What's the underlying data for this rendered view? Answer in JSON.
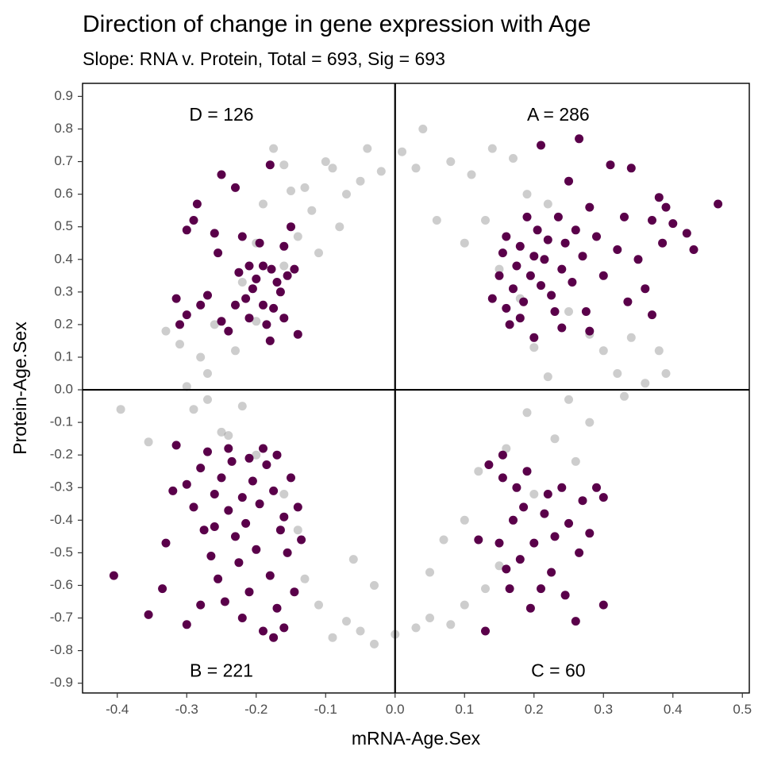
{
  "chart_data": {
    "type": "scatter",
    "title": "Direction of change in gene expression with Age",
    "subtitle": "Slope: RNA v. Protein, Total = 693, Sig = 693",
    "xlabel": "mRNA-Age.Sex",
    "ylabel": "Protein-Age.Sex",
    "xlim": [
      -0.45,
      0.51
    ],
    "ylim": [
      -0.93,
      0.94
    ],
    "x_ticks": [
      -0.4,
      -0.3,
      -0.2,
      -0.1,
      0.0,
      0.1,
      0.2,
      0.3,
      0.4,
      0.5
    ],
    "x_tick_labels": [
      "-0.4",
      "-0.3",
      "-0.2",
      "-0.1",
      "0.0",
      "0.1",
      "0.2",
      "0.3",
      "0.4",
      "0.5"
    ],
    "y_ticks": [
      0.9,
      0.8,
      0.7,
      0.6,
      0.5,
      0.4,
      0.3,
      0.2,
      0.1,
      0.0,
      -0.1,
      -0.2,
      -0.3,
      -0.4,
      -0.5,
      -0.6,
      -0.7,
      -0.8,
      -0.9
    ],
    "y_tick_labels": [
      "0.9",
      "0.8",
      "0.7",
      "0.6",
      "0.5",
      "0.4",
      "0.3",
      "0.2",
      "0.1",
      "0.0",
      "-0.1",
      "-0.2",
      "-0.3",
      "-0.4",
      "-0.5",
      "-0.6",
      "-0.7",
      "-0.8",
      "-0.9"
    ],
    "grid": false,
    "reference_lines": {
      "x": 0,
      "y": 0
    },
    "colors": {
      "background_points": "#595959",
      "significant_points": "#5a004a",
      "axis_lines": "#000000"
    },
    "quadrant_labels": [
      {
        "name": "D",
        "count": 126,
        "text": "D =  126",
        "x": -0.25,
        "y": 0.84
      },
      {
        "name": "A",
        "count": 286,
        "text": "A =  286",
        "x": 0.235,
        "y": 0.84
      },
      {
        "name": "B",
        "count": 221,
        "text": "B =  221",
        "x": -0.25,
        "y": -0.865
      },
      {
        "name": "C",
        "count": 60,
        "text": "C =  60",
        "x": 0.235,
        "y": -0.865
      }
    ],
    "series": [
      {
        "style": "background",
        "points": [
          [
            -0.395,
            -0.06
          ],
          [
            -0.355,
            -0.16
          ],
          [
            -0.33,
            0.18
          ],
          [
            -0.31,
            0.14
          ],
          [
            -0.29,
            -0.06
          ],
          [
            -0.28,
            0.1
          ],
          [
            -0.27,
            0.05
          ],
          [
            -0.25,
            -0.13
          ],
          [
            -0.23,
            0.12
          ],
          [
            -0.22,
            -0.05
          ],
          [
            -0.2,
            0.21
          ],
          [
            -0.19,
            0.57
          ],
          [
            -0.175,
            0.74
          ],
          [
            -0.16,
            0.69
          ],
          [
            -0.15,
            0.61
          ],
          [
            -0.13,
            0.62
          ],
          [
            -0.12,
            0.55
          ],
          [
            -0.1,
            0.7
          ],
          [
            -0.09,
            0.68
          ],
          [
            -0.07,
            0.6
          ],
          [
            -0.05,
            0.64
          ],
          [
            -0.04,
            0.74
          ],
          [
            -0.02,
            0.67
          ],
          [
            0.01,
            0.73
          ],
          [
            0.03,
            0.68
          ],
          [
            0.04,
            0.8
          ],
          [
            0.08,
            0.7
          ],
          [
            0.11,
            0.66
          ],
          [
            0.14,
            0.74
          ],
          [
            0.17,
            0.71
          ],
          [
            0.19,
            0.6
          ],
          [
            0.22,
            0.57
          ],
          [
            0.25,
            0.24
          ],
          [
            0.28,
            0.17
          ],
          [
            0.3,
            0.12
          ],
          [
            0.32,
            0.05
          ],
          [
            0.34,
            0.16
          ],
          [
            0.36,
            0.02
          ],
          [
            0.38,
            0.12
          ],
          [
            0.39,
            0.05
          ],
          [
            0.33,
            -0.02
          ],
          [
            0.28,
            -0.1
          ],
          [
            0.26,
            -0.22
          ],
          [
            0.23,
            -0.15
          ],
          [
            0.2,
            -0.32
          ],
          [
            0.17,
            -0.4
          ],
          [
            0.15,
            -0.54
          ],
          [
            0.13,
            -0.61
          ],
          [
            0.1,
            -0.66
          ],
          [
            0.08,
            -0.72
          ],
          [
            0.05,
            -0.7
          ],
          [
            0.03,
            -0.73
          ],
          [
            0.0,
            -0.75
          ],
          [
            -0.03,
            -0.78
          ],
          [
            -0.05,
            -0.74
          ],
          [
            -0.07,
            -0.71
          ],
          [
            -0.09,
            -0.76
          ],
          [
            -0.11,
            -0.66
          ],
          [
            -0.13,
            -0.58
          ],
          [
            -0.14,
            -0.43
          ],
          [
            -0.16,
            -0.32
          ],
          [
            -0.2,
            -0.2
          ],
          [
            -0.24,
            -0.14
          ],
          [
            -0.27,
            -0.03
          ],
          [
            -0.3,
            0.01
          ],
          [
            -0.26,
            0.2
          ],
          [
            -0.22,
            0.33
          ],
          [
            -0.2,
            0.45
          ],
          [
            -0.16,
            0.38
          ],
          [
            -0.14,
            0.47
          ],
          [
            -0.11,
            0.42
          ],
          [
            -0.08,
            0.5
          ],
          [
            0.06,
            0.52
          ],
          [
            0.1,
            0.45
          ],
          [
            0.13,
            0.52
          ],
          [
            0.15,
            0.37
          ],
          [
            0.18,
            0.28
          ],
          [
            0.2,
            0.13
          ],
          [
            0.22,
            0.04
          ],
          [
            0.25,
            -0.03
          ],
          [
            0.19,
            -0.07
          ],
          [
            0.16,
            -0.18
          ],
          [
            0.12,
            -0.25
          ],
          [
            0.1,
            -0.4
          ],
          [
            0.07,
            -0.46
          ],
          [
            0.05,
            -0.56
          ],
          [
            -0.03,
            -0.6
          ],
          [
            -0.06,
            -0.52
          ]
        ]
      },
      {
        "style": "significant",
        "points": [
          [
            -0.285,
            0.57
          ],
          [
            -0.29,
            0.52
          ],
          [
            -0.3,
            0.49
          ],
          [
            -0.26,
            0.48
          ],
          [
            -0.255,
            0.42
          ],
          [
            -0.25,
            0.66
          ],
          [
            -0.23,
            0.62
          ],
          [
            -0.315,
            0.28
          ],
          [
            -0.31,
            0.2
          ],
          [
            -0.3,
            0.23
          ],
          [
            -0.28,
            0.26
          ],
          [
            -0.27,
            0.29
          ],
          [
            -0.25,
            0.21
          ],
          [
            -0.24,
            0.18
          ],
          [
            -0.23,
            0.26
          ],
          [
            -0.225,
            0.36
          ],
          [
            -0.215,
            0.28
          ],
          [
            -0.21,
            0.38
          ],
          [
            -0.205,
            0.31
          ],
          [
            -0.2,
            0.34
          ],
          [
            -0.19,
            0.26
          ],
          [
            -0.185,
            0.2
          ],
          [
            -0.18,
            0.69
          ],
          [
            -0.178,
            0.37
          ],
          [
            -0.17,
            0.33
          ],
          [
            -0.165,
            0.3
          ],
          [
            -0.16,
            0.44
          ],
          [
            -0.155,
            0.35
          ],
          [
            -0.15,
            0.5
          ],
          [
            -0.145,
            0.37
          ],
          [
            -0.14,
            0.17
          ],
          [
            -0.175,
            0.25
          ],
          [
            -0.195,
            0.45
          ],
          [
            -0.22,
            0.47
          ],
          [
            -0.21,
            0.22
          ],
          [
            -0.18,
            0.15
          ],
          [
            -0.16,
            0.22
          ],
          [
            -0.19,
            0.38
          ],
          [
            0.14,
            0.28
          ],
          [
            0.15,
            0.35
          ],
          [
            0.155,
            0.42
          ],
          [
            0.16,
            0.47
          ],
          [
            0.165,
            0.2
          ],
          [
            0.17,
            0.31
          ],
          [
            0.175,
            0.38
          ],
          [
            0.18,
            0.44
          ],
          [
            0.185,
            0.27
          ],
          [
            0.19,
            0.53
          ],
          [
            0.195,
            0.35
          ],
          [
            0.2,
            0.41
          ],
          [
            0.205,
            0.49
          ],
          [
            0.21,
            0.32
          ],
          [
            0.21,
            0.75
          ],
          [
            0.215,
            0.4
          ],
          [
            0.22,
            0.46
          ],
          [
            0.225,
            0.29
          ],
          [
            0.23,
            0.24
          ],
          [
            0.235,
            0.53
          ],
          [
            0.24,
            0.37
          ],
          [
            0.245,
            0.45
          ],
          [
            0.25,
            0.64
          ],
          [
            0.255,
            0.33
          ],
          [
            0.26,
            0.49
          ],
          [
            0.265,
            0.77
          ],
          [
            0.27,
            0.41
          ],
          [
            0.275,
            0.24
          ],
          [
            0.28,
            0.56
          ],
          [
            0.29,
            0.47
          ],
          [
            0.3,
            0.35
          ],
          [
            0.31,
            0.69
          ],
          [
            0.32,
            0.43
          ],
          [
            0.33,
            0.53
          ],
          [
            0.335,
            0.27
          ],
          [
            0.34,
            0.68
          ],
          [
            0.35,
            0.4
          ],
          [
            0.36,
            0.31
          ],
          [
            0.37,
            0.52
          ],
          [
            0.38,
            0.59
          ],
          [
            0.385,
            0.45
          ],
          [
            0.39,
            0.56
          ],
          [
            0.4,
            0.51
          ],
          [
            0.42,
            0.48
          ],
          [
            0.43,
            0.43
          ],
          [
            0.465,
            0.57
          ],
          [
            0.37,
            0.23
          ],
          [
            0.28,
            0.18
          ],
          [
            0.24,
            0.19
          ],
          [
            0.2,
            0.16
          ],
          [
            0.18,
            0.22
          ],
          [
            0.16,
            0.25
          ],
          [
            -0.405,
            -0.57
          ],
          [
            -0.355,
            -0.69
          ],
          [
            -0.335,
            -0.61
          ],
          [
            -0.33,
            -0.47
          ],
          [
            -0.32,
            -0.31
          ],
          [
            -0.315,
            -0.17
          ],
          [
            -0.3,
            -0.29
          ],
          [
            -0.29,
            -0.36
          ],
          [
            -0.28,
            -0.24
          ],
          [
            -0.275,
            -0.43
          ],
          [
            -0.27,
            -0.19
          ],
          [
            -0.265,
            -0.51
          ],
          [
            -0.26,
            -0.32
          ],
          [
            -0.255,
            -0.58
          ],
          [
            -0.25,
            -0.27
          ],
          [
            -0.245,
            -0.65
          ],
          [
            -0.24,
            -0.37
          ],
          [
            -0.235,
            -0.22
          ],
          [
            -0.23,
            -0.45
          ],
          [
            -0.225,
            -0.53
          ],
          [
            -0.22,
            -0.33
          ],
          [
            -0.215,
            -0.41
          ],
          [
            -0.21,
            -0.62
          ],
          [
            -0.205,
            -0.28
          ],
          [
            -0.2,
            -0.49
          ],
          [
            -0.195,
            -0.35
          ],
          [
            -0.19,
            -0.74
          ],
          [
            -0.185,
            -0.23
          ],
          [
            -0.18,
            -0.57
          ],
          [
            -0.175,
            -0.31
          ],
          [
            -0.17,
            -0.67
          ],
          [
            -0.165,
            -0.43
          ],
          [
            -0.16,
            -0.39
          ],
          [
            -0.155,
            -0.5
          ],
          [
            -0.15,
            -0.27
          ],
          [
            -0.145,
            -0.62
          ],
          [
            -0.14,
            -0.36
          ],
          [
            -0.135,
            -0.46
          ],
          [
            -0.3,
            -0.72
          ],
          [
            -0.28,
            -0.66
          ],
          [
            -0.175,
            -0.76
          ],
          [
            -0.21,
            -0.21
          ],
          [
            -0.19,
            -0.18
          ],
          [
            -0.17,
            -0.2
          ],
          [
            -0.24,
            -0.18
          ],
          [
            -0.26,
            -0.42
          ],
          [
            -0.22,
            -0.7
          ],
          [
            -0.16,
            -0.73
          ],
          [
            0.12,
            -0.46
          ],
          [
            0.13,
            -0.74
          ],
          [
            0.135,
            -0.23
          ],
          [
            0.15,
            -0.47
          ],
          [
            0.155,
            -0.27
          ],
          [
            0.16,
            -0.55
          ],
          [
            0.17,
            -0.4
          ],
          [
            0.175,
            -0.3
          ],
          [
            0.18,
            -0.52
          ],
          [
            0.185,
            -0.36
          ],
          [
            0.19,
            -0.25
          ],
          [
            0.195,
            -0.67
          ],
          [
            0.2,
            -0.47
          ],
          [
            0.21,
            -0.61
          ],
          [
            0.215,
            -0.38
          ],
          [
            0.22,
            -0.32
          ],
          [
            0.225,
            -0.56
          ],
          [
            0.23,
            -0.45
          ],
          [
            0.24,
            -0.3
          ],
          [
            0.245,
            -0.63
          ],
          [
            0.25,
            -0.41
          ],
          [
            0.26,
            -0.71
          ],
          [
            0.265,
            -0.5
          ],
          [
            0.27,
            -0.34
          ],
          [
            0.28,
            -0.44
          ],
          [
            0.29,
            -0.3
          ],
          [
            0.3,
            -0.33
          ],
          [
            0.3,
            -0.66
          ],
          [
            0.155,
            -0.2
          ],
          [
            0.165,
            -0.61
          ]
        ]
      }
    ]
  }
}
